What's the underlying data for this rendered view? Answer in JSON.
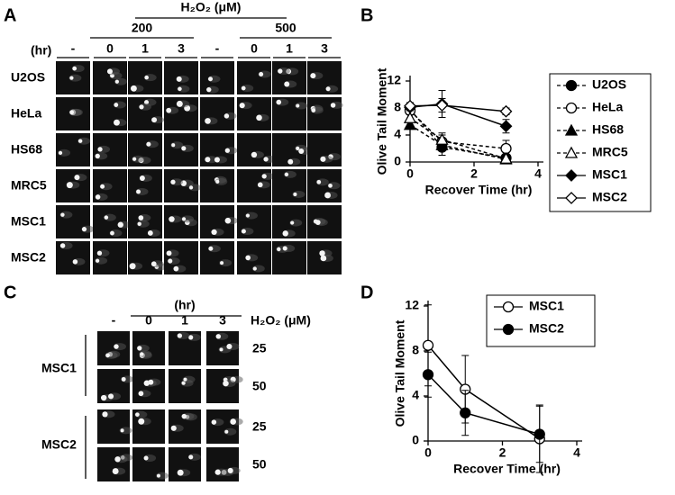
{
  "panel_a": {
    "label": "A",
    "treatment": "H₂O₂ (μM)",
    "time_label": "(hr)",
    "groups": [
      "200",
      "500"
    ],
    "columns": [
      "-",
      "0",
      "1",
      "3",
      "-",
      "0",
      "1",
      "3"
    ],
    "rows": [
      "U2OS",
      "HeLa",
      "HS68",
      "MRC5",
      "MSC1",
      "MSC2"
    ]
  },
  "panel_c": {
    "label": "C",
    "time_label": "(hr)",
    "treatment": "H₂O₂ (μM)",
    "columns": [
      "-",
      "0",
      "1",
      "3"
    ],
    "rows": [
      "MSC1",
      "MSC2"
    ],
    "doses": [
      "25",
      "50",
      "25",
      "50"
    ]
  },
  "chart_data": [
    {
      "panel_label": "B",
      "type": "line",
      "ylabel": "Olive Tail Moment",
      "xlabel": "Recover Time (hr)",
      "x": [
        0,
        1,
        3
      ],
      "xlim": [
        0,
        4
      ],
      "xticks": [
        0,
        2,
        4
      ],
      "ylim": [
        0,
        12
      ],
      "yticks": [
        0,
        4,
        8,
        12
      ],
      "series": [
        {
          "name": "U2OS",
          "color": "#000000",
          "marker": "circle",
          "filled": true,
          "dashed": true,
          "values": [
            7.8,
            2.2,
            0.6
          ],
          "errors": [
            0.5,
            1.2,
            0.5
          ]
        },
        {
          "name": "HeLa",
          "color": "#000000",
          "marker": "circle",
          "filled": false,
          "dashed": true,
          "values": [
            7.6,
            3.0,
            2.0
          ],
          "errors": [
            0.5,
            1.0,
            1.2
          ]
        },
        {
          "name": "HS68",
          "color": "#000000",
          "marker": "triangle",
          "filled": true,
          "dashed": true,
          "values": [
            5.5,
            2.5,
            0.4
          ],
          "errors": [
            0.5,
            0.8,
            0.3
          ]
        },
        {
          "name": "MRC5",
          "color": "#000000",
          "marker": "triangle",
          "filled": false,
          "dashed": true,
          "values": [
            6.5,
            3.3,
            0.5
          ],
          "errors": [
            0.5,
            1.0,
            0.5
          ]
        },
        {
          "name": "MSC1",
          "color": "#000000",
          "marker": "diamond",
          "filled": true,
          "dashed": false,
          "values": [
            8.1,
            8.6,
            5.3
          ],
          "errors": [
            0.5,
            2.0,
            1.0
          ]
        },
        {
          "name": "MSC2",
          "color": "#000000",
          "marker": "diamond",
          "filled": false,
          "dashed": false,
          "values": [
            8.3,
            8.4,
            7.5
          ],
          "errors": [
            0.5,
            1.0,
            0.5
          ]
        }
      ]
    },
    {
      "panel_label": "D",
      "type": "line",
      "ylabel": "Olive Tail Moment",
      "xlabel": "Recover Time (hr)",
      "x": [
        0,
        1,
        3
      ],
      "xlim": [
        0,
        4
      ],
      "xticks": [
        0,
        2,
        4
      ],
      "ylim": [
        0,
        12
      ],
      "yticks": [
        0,
        4,
        8,
        12
      ],
      "series": [
        {
          "name": "MSC1",
          "color": "#000000",
          "marker": "circle",
          "filled": false,
          "dashed": false,
          "values": [
            8.5,
            4.6,
            0.2
          ],
          "errors": [
            3.6,
            3.0,
            3.0
          ]
        },
        {
          "name": "MSC2",
          "color": "#000000",
          "marker": "circle",
          "filled": true,
          "dashed": false,
          "values": [
            5.9,
            2.5,
            0.6
          ],
          "errors": [
            2.0,
            2.0,
            2.5
          ]
        }
      ]
    }
  ]
}
